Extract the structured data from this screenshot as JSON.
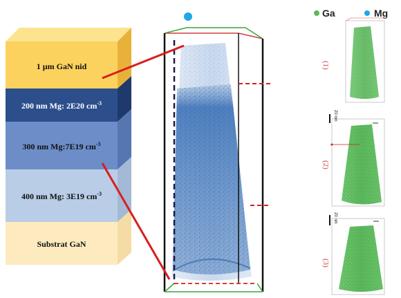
{
  "layers": [
    {
      "label": "1 µm GaN nid",
      "color": "#fbd25d",
      "side": "#e8b23a",
      "top": "#fde38f"
    },
    {
      "label": "200 nm Mg: 2E20 cm",
      "sup": "-3",
      "color": "#2c4f8c",
      "side": "#1e3a6c",
      "label_color": "#ffffff"
    },
    {
      "label": "300 nm Mg:7E19 cm",
      "sup": "-3",
      "color": "#6c8dc8",
      "side": "#5676b2",
      "label_color": "#111111"
    },
    {
      "label": "400 nm Mg: 3E19 cm",
      "sup": "-3",
      "color": "#b9cde6",
      "side": "#a3b9d6",
      "label_color": "#111111"
    },
    {
      "label": "Substrat GaN",
      "color": "#fdebbf",
      "side": "#f5dca6",
      "label_color": "#111111"
    }
  ],
  "legend": {
    "ga_label": "Ga",
    "mg_label": "Mg",
    "ga_color": "#5cb85c",
    "mg_color": "#1fa7e6"
  },
  "tips": [
    {
      "label": "(1)"
    },
    {
      "label": "(2)"
    },
    {
      "label": "(3)"
    }
  ],
  "scale_bars": [
    {
      "label": "20 nm"
    },
    {
      "label": "20 nm"
    }
  ]
}
